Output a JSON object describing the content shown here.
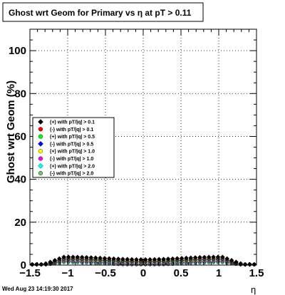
{
  "chart_data": {
    "type": "scatter",
    "title": "Ghost wrt Geom for Primary vs   η at pT > 0.11",
    "xlabel": "η",
    "ylabel": "Ghost wrt Geom (%)",
    "xlim": [
      -1.5,
      1.5
    ],
    "ylim": [
      0,
      110
    ],
    "xticks": [
      -1.5,
      -1,
      -0.5,
      0,
      0.5,
      1,
      1.5
    ],
    "xtick_labels": [
      "−1.5",
      "−1",
      "−0.5",
      "0",
      "0.5",
      "1",
      "1.5"
    ],
    "yticks": [
      0,
      20,
      40,
      60,
      80,
      100
    ],
    "ytick_labels": [
      "0",
      "20",
      "40",
      "60",
      "80",
      "100"
    ],
    "grid": true,
    "legend_position": "middle-left",
    "series": [
      {
        "name": "(+) with pT/|q| > 0.1",
        "color": "#000000",
        "marker": "diamond"
      },
      {
        "name": "(-) with pT/|q| > 0.1",
        "color": "#ff0000",
        "marker": "circle"
      },
      {
        "name": "(+) with pT/|q| > 0.5",
        "color": "#00ff00",
        "marker": "circle"
      },
      {
        "name": "(-) with pT/|q| > 0.5",
        "color": "#0000ff",
        "marker": "diamond"
      },
      {
        "name": "(+) with pT/|q| > 1.0",
        "color": "#ffff00",
        "marker": "circle"
      },
      {
        "name": "(-) with pT/|q| > 1.0",
        "color": "#ff00ff",
        "marker": "circle"
      },
      {
        "name": "(+) with pT/|q| > 2.0",
        "color": "#00ffff",
        "marker": "diamond"
      },
      {
        "name": "(-) with pT/|q| > 2.0",
        "color": "#66cc66",
        "marker": "circle"
      }
    ]
  },
  "footer": {
    "timestamp": "Wed Aug 23 14:19:30 2017"
  }
}
